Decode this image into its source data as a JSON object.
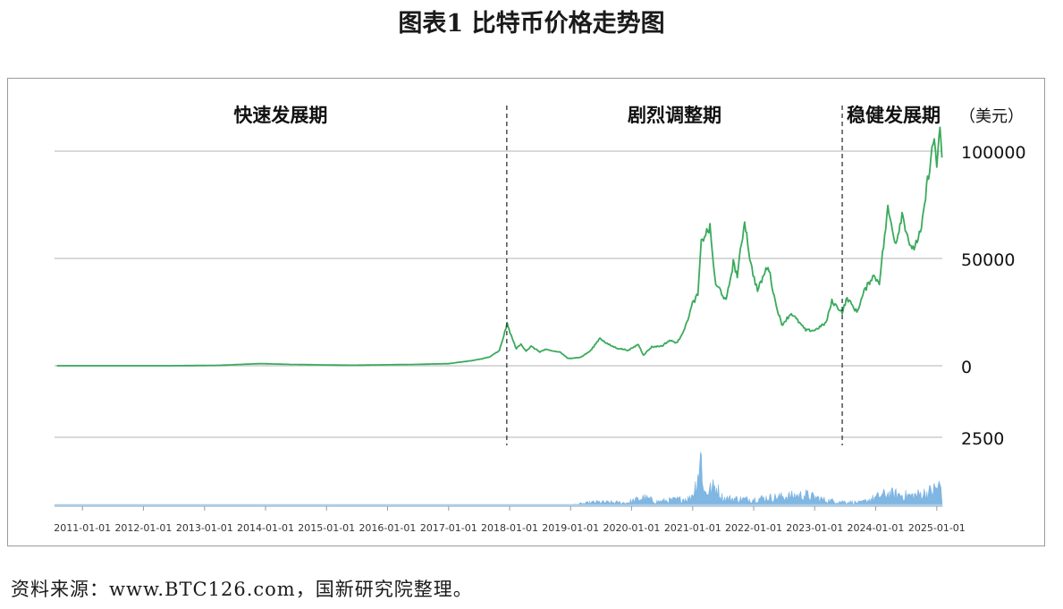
{
  "title": "图表1  比特币价格走势图",
  "source": "资料来源：www.BTC126.com，国新研究院整理。",
  "colors": {
    "price": "#3aaa5c",
    "volume": "#7fb6e2",
    "grid": "#d9d9d9",
    "divider": "#333333"
  },
  "chart_data": {
    "type": "line",
    "unit_label": "（美元）",
    "phases": [
      {
        "label": "快速发展期",
        "end": "2017-12-15"
      },
      {
        "label": "剧烈调整期",
        "end": "2023-06-15"
      },
      {
        "label": "稳健发展期"
      }
    ],
    "price_axis": {
      "ticks": [
        0,
        50000,
        100000
      ],
      "tick_labels": [
        "0",
        "50000",
        "100000"
      ]
    },
    "volume_axis": {
      "ticks": [
        0,
        2500
      ],
      "tick_labels": [
        "0",
        "2500"
      ]
    },
    "x_ticks": [
      "2011-01-01",
      "2012-01-01",
      "2013-01-01",
      "2014-01-01",
      "2015-01-01",
      "2016-01-01",
      "2017-01-01",
      "2018-01-01",
      "2019-01-01",
      "2020-01-01",
      "2021-01-01",
      "2022-01-01",
      "2023-01-01",
      "2024-01-01",
      "2025-01-01"
    ],
    "series": [
      {
        "kind": "price",
        "points": [
          [
            "2010-08-01",
            0.1
          ],
          [
            "2011-06-01",
            20
          ],
          [
            "2012-06-01",
            6
          ],
          [
            "2013-04-01",
            200
          ],
          [
            "2013-12-01",
            1000
          ],
          [
            "2014-06-01",
            600
          ],
          [
            "2015-06-01",
            240
          ],
          [
            "2016-06-01",
            600
          ],
          [
            "2017-01-01",
            1000
          ],
          [
            "2017-06-01",
            2500
          ],
          [
            "2017-09-01",
            4000
          ],
          [
            "2017-11-01",
            7000
          ],
          [
            "2017-12-17",
            19500
          ],
          [
            "2018-01-15",
            13000
          ],
          [
            "2018-02-10",
            8000
          ],
          [
            "2018-03-10",
            10000
          ],
          [
            "2018-04-10",
            7000
          ],
          [
            "2018-05-10",
            9000
          ],
          [
            "2018-07-01",
            6500
          ],
          [
            "2018-08-01",
            7500
          ],
          [
            "2018-11-01",
            6300
          ],
          [
            "2018-12-15",
            3400
          ],
          [
            "2019-03-01",
            3900
          ],
          [
            "2019-05-01",
            7000
          ],
          [
            "2019-06-26",
            13000
          ],
          [
            "2019-08-01",
            10500
          ],
          [
            "2019-10-01",
            8300
          ],
          [
            "2019-12-15",
            7200
          ],
          [
            "2020-02-10",
            10000
          ],
          [
            "2020-03-12",
            5000
          ],
          [
            "2020-05-01",
            8800
          ],
          [
            "2020-07-01",
            9200
          ],
          [
            "2020-08-15",
            11800
          ],
          [
            "2020-10-01",
            10700
          ],
          [
            "2020-11-20",
            18500
          ],
          [
            "2020-12-31",
            29000
          ],
          [
            "2021-02-01",
            33000
          ],
          [
            "2021-02-21",
            57000
          ],
          [
            "2021-03-13",
            61000
          ],
          [
            "2021-04-14",
            64000
          ],
          [
            "2021-05-19",
            37000
          ],
          [
            "2021-06-10",
            36000
          ],
          [
            "2021-07-20",
            30000
          ],
          [
            "2021-09-01",
            48000
          ],
          [
            "2021-09-25",
            42000
          ],
          [
            "2021-11-08",
            68000
          ],
          [
            "2021-12-15",
            47000
          ],
          [
            "2022-01-24",
            35000
          ],
          [
            "2022-03-28",
            47000
          ],
          [
            "2022-05-10",
            30000
          ],
          [
            "2022-06-18",
            19000
          ],
          [
            "2022-08-14",
            24500
          ],
          [
            "2022-11-09",
            16500
          ],
          [
            "2022-12-31",
            16500
          ],
          [
            "2023-03-10",
            20000
          ],
          [
            "2023-04-14",
            30000
          ],
          [
            "2023-06-15",
            25000
          ],
          [
            "2023-07-14",
            31500
          ],
          [
            "2023-09-11",
            25000
          ],
          [
            "2023-10-24",
            34500
          ],
          [
            "2023-12-15",
            42000
          ],
          [
            "2024-01-23",
            39000
          ],
          [
            "2024-03-14",
            73000
          ],
          [
            "2024-05-01",
            57000
          ],
          [
            "2024-06-07",
            71000
          ],
          [
            "2024-08-05",
            53000
          ],
          [
            "2024-10-01",
            63000
          ],
          [
            "2024-11-13",
            90000
          ],
          [
            "2024-12-17",
            106000
          ],
          [
            "2025-01-01",
            94000
          ],
          [
            "2025-01-20",
            108000
          ],
          [
            "2025-02-01",
            97000
          ]
        ]
      },
      {
        "kind": "volume",
        "points": [
          [
            "2010-08-01",
            0
          ],
          [
            "2017-11-01",
            5
          ],
          [
            "2017-12-15",
            60
          ],
          [
            "2018-02-01",
            20
          ],
          [
            "2018-12-01",
            10
          ],
          [
            "2019-01-15",
            60
          ],
          [
            "2019-06-01",
            180
          ],
          [
            "2019-12-01",
            150
          ],
          [
            "2020-03-15",
            380
          ],
          [
            "2020-06-01",
            200
          ],
          [
            "2020-12-15",
            350
          ],
          [
            "2021-01-11",
            720
          ],
          [
            "2021-02-22",
            2230
          ],
          [
            "2021-03-10",
            600
          ],
          [
            "2021-05-19",
            880
          ],
          [
            "2021-07-01",
            350
          ],
          [
            "2021-12-01",
            300
          ],
          [
            "2022-06-15",
            420
          ],
          [
            "2022-11-10",
            500
          ],
          [
            "2023-03-15",
            250
          ],
          [
            "2023-10-01",
            150
          ],
          [
            "2024-03-10",
            560
          ],
          [
            "2024-08-05",
            460
          ],
          [
            "2024-11-13",
            620
          ],
          [
            "2024-12-05",
            700
          ],
          [
            "2025-01-20",
            900
          ],
          [
            "2025-02-01",
            700
          ]
        ]
      }
    ]
  }
}
